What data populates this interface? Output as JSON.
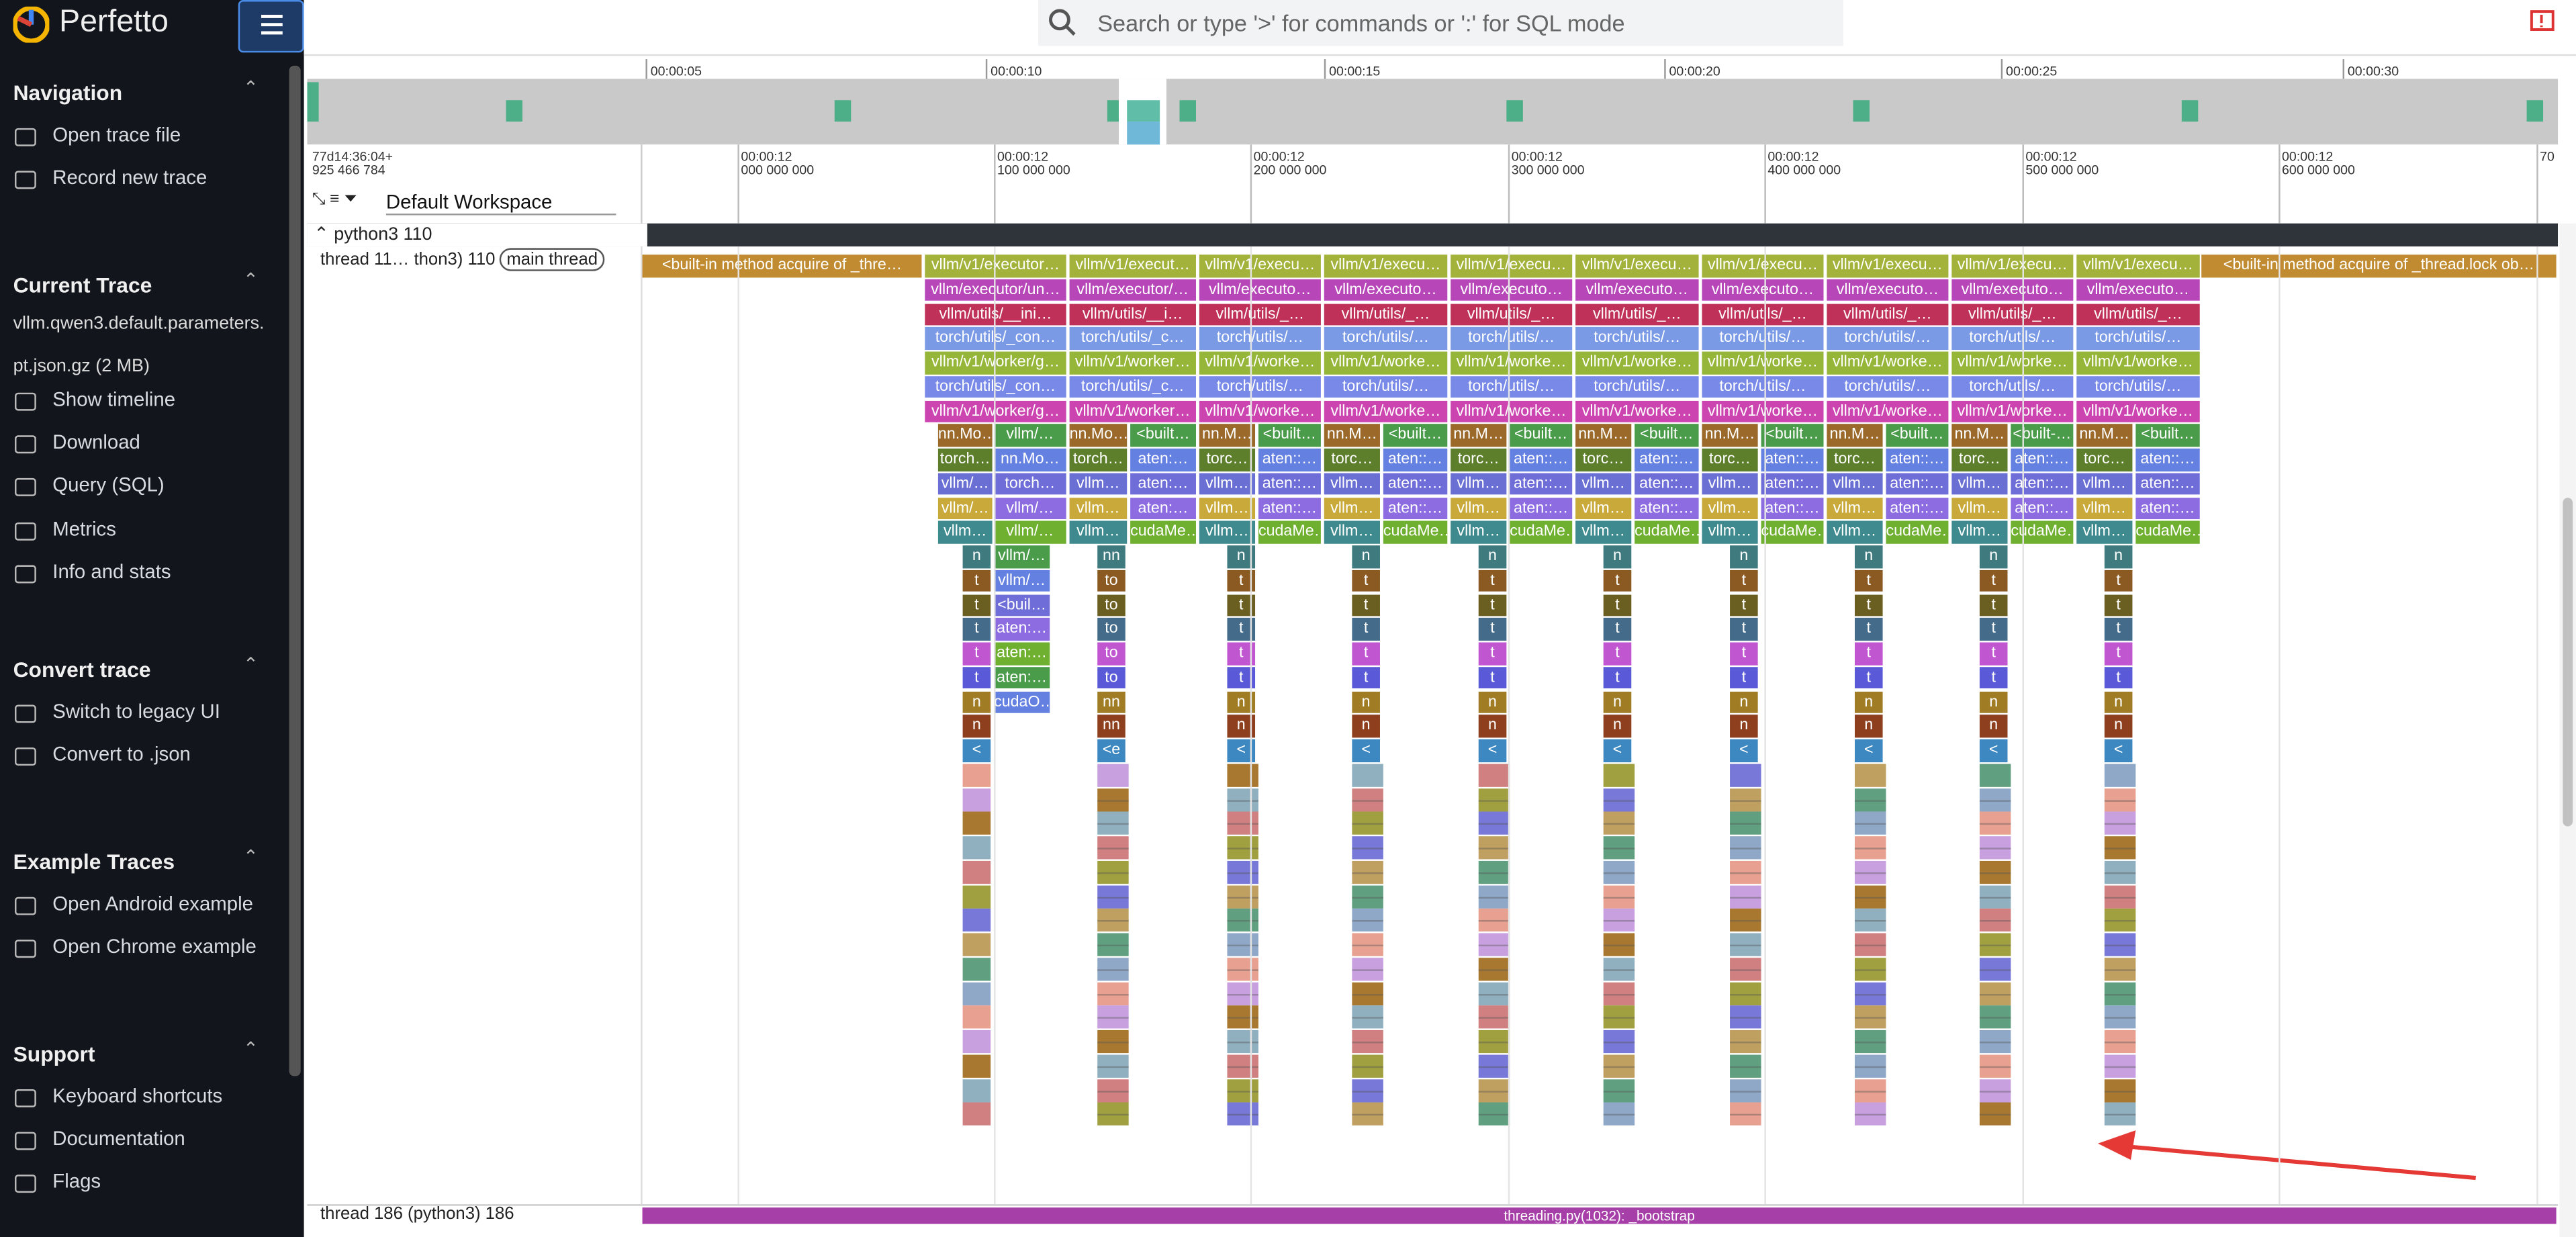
{
  "app": {
    "name": "Perfetto",
    "search_placeholder": "Search or type '>' for commands or ':' for SQL mode"
  },
  "sidebar": {
    "sections": [
      {
        "title": "Navigation",
        "items": [
          "Open trace file",
          "Record new trace"
        ]
      },
      {
        "title": "Current Trace",
        "file": "vllm.qwen3.default.parameters.pt.json.gz (2 MB)",
        "items": [
          "Show timeline",
          "Download",
          "Query (SQL)",
          "Metrics",
          "Info and stats"
        ]
      },
      {
        "title": "Convert trace",
        "items": [
          "Switch to legacy UI",
          "Convert to .json"
        ]
      },
      {
        "title": "Example Traces",
        "items": [
          "Open Android example",
          "Open Chrome example"
        ]
      },
      {
        "title": "Support",
        "items": [
          "Keyboard shortcuts",
          "Documentation",
          "Flags"
        ]
      }
    ]
  },
  "overview": {
    "ticks": [
      "00:00:05",
      "00:00:10",
      "00:00:15",
      "00:00:20",
      "00:00:25",
      "00:00:30"
    ]
  },
  "timeline": {
    "offset": [
      "77d14:36:04+",
      "925 466 784"
    ],
    "workspace": "Default Workspace",
    "ticks": [
      [
        "00:00:12",
        "000 000 000"
      ],
      [
        "00:00:12",
        "100 000 000"
      ],
      [
        "00:00:12",
        "200 000 000"
      ],
      [
        "00:00:12",
        "300 000 000"
      ],
      [
        "00:00:12",
        "400 000 000"
      ],
      [
        "00:00:12",
        "500 000 000"
      ],
      [
        "00:00:12",
        "600 000 000"
      ],
      [
        "70"
      ]
    ]
  },
  "tracks": {
    "process": "python3 110",
    "thread": "thread 11… thon3) 110",
    "thread_tag": "main thread",
    "thread2": "thread 186 (python3) 186",
    "long_slices": [
      "<built-in method acquire of _thre…",
      "<built-in method acquire of _thread.lock ob…"
    ],
    "bootstrap": "threading.py(1032): _bootstrap",
    "groups": [
      {
        "full": [
          "vllm/v1/executor…",
          "vllm/executor/un…",
          "vllm/utils/__ini…",
          "torch/utils/_con…",
          "vllm/v1/worker/g…",
          "torch/utils/_con…",
          "vllm/v1/worker/g…"
        ],
        "left": [
          "nn.Mo…",
          "torch…",
          "vllm/…",
          "vllm/…",
          "vllm…"
        ],
        "right": [
          "vllm/…",
          "nn.Mo…",
          "torch…",
          "vllm/…",
          "vllm/…"
        ],
        "narrow": [
          "n",
          "t",
          "t",
          "t",
          "t",
          "t",
          "n",
          "n",
          "<"
        ],
        "extra": [
          "vllm/…",
          "vllm/…",
          "<buil…",
          "aten:…",
          "aten:…",
          "aten:…",
          "cudaO…"
        ]
      },
      {
        "full": [
          "vllm/v1/execut…",
          "vllm/executor/…",
          "vllm/utils/__i…",
          "torch/utils/_c…",
          "vllm/v1/worker…",
          "torch/utils/_c…",
          "vllm/v1/worker…"
        ],
        "left": [
          "nn.Mo…",
          "torch…",
          "vllm…",
          "vllm…",
          "vllm…"
        ],
        "right": [
          "<built…",
          "aten:…",
          "aten:…",
          "aten:…",
          "cudaMe…"
        ],
        "narrow": [
          "nn",
          "to",
          "to",
          "to",
          "to",
          "to",
          "nn",
          "nn",
          "<e"
        ]
      },
      {
        "full": [
          "vllm/v1/execu…",
          "vllm/executo…",
          "vllm/utils/_…",
          "torch/utils/…",
          "vllm/v1/worke…",
          "torch/utils/…",
          "vllm/v1/worke…"
        ],
        "left": [
          "nn.M…",
          "torc…",
          "vllm…",
          "vllm…",
          "vllm…"
        ],
        "right": [
          "<built…",
          "aten::…",
          "aten::…",
          "aten::…",
          "cudaMe…"
        ],
        "narrow": [
          "n",
          "t",
          "t",
          "t",
          "t",
          "t",
          "n",
          "n",
          "<"
        ]
      },
      {
        "full": [
          "vllm/v1/execu…",
          "vllm/executo…",
          "vllm/utils/_…",
          "torch/utils/…",
          "vllm/v1/worke…",
          "torch/utils/…",
          "vllm/v1/worke…"
        ],
        "left": [
          "nn.M…",
          "torc…",
          "vllm…",
          "vllm…",
          "vllm…"
        ],
        "right": [
          "<built…",
          "aten::…",
          "aten::…",
          "aten::…",
          "cudaMe…"
        ],
        "narrow": [
          "n",
          "t",
          "t",
          "t",
          "t",
          "t",
          "n",
          "n",
          "<"
        ]
      },
      {
        "full": [
          "vllm/v1/execu…",
          "vllm/executo…",
          "vllm/utils/_…",
          "torch/utils/…",
          "vllm/v1/worke…",
          "torch/utils/…",
          "vllm/v1/worke…"
        ],
        "left": [
          "nn.M…",
          "torc…",
          "vllm…",
          "vllm…",
          "vllm…"
        ],
        "right": [
          "<built…",
          "aten::…",
          "aten::…",
          "aten::…",
          "cudaMe…"
        ],
        "narrow": [
          "n",
          "t",
          "t",
          "t",
          "t",
          "t",
          "n",
          "n",
          "<"
        ]
      },
      {
        "full": [
          "vllm/v1/execu…",
          "vllm/executo…",
          "vllm/utils/_…",
          "torch/utils/…",
          "vllm/v1/worke…",
          "torch/utils/…",
          "vllm/v1/worke…"
        ],
        "left": [
          "nn.M…",
          "torc…",
          "vllm…",
          "vllm…",
          "vllm…"
        ],
        "right": [
          "<built…",
          "aten::…",
          "aten::…",
          "aten::…",
          "cudaMe…"
        ],
        "narrow": [
          "n",
          "t",
          "t",
          "t",
          "t",
          "t",
          "n",
          "n",
          "<"
        ]
      },
      {
        "full": [
          "vllm/v1/execu…",
          "vllm/executo…",
          "vllm/utils/_…",
          "torch/utils/…",
          "vllm/v1/worke…",
          "torch/utils/…",
          "vllm/v1/worke…"
        ],
        "left": [
          "nn.M…",
          "torc…",
          "vllm…",
          "vllm…",
          "vllm…"
        ],
        "right": [
          "<built…",
          "aten::…",
          "aten::…",
          "aten::…",
          "cudaMe…"
        ],
        "narrow": [
          "n",
          "t",
          "t",
          "t",
          "t",
          "t",
          "n",
          "n",
          "<"
        ]
      },
      {
        "full": [
          "vllm/v1/execu…",
          "vllm/executo…",
          "vllm/utils/_…",
          "torch/utils/…",
          "vllm/v1/worke…",
          "torch/utils/…",
          "vllm/v1/worke…"
        ],
        "left": [
          "nn.M…",
          "torc…",
          "vllm…",
          "vllm…",
          "vllm…"
        ],
        "right": [
          "<built…",
          "aten::…",
          "aten::…",
          "aten::…",
          "cudaMe…"
        ],
        "narrow": [
          "n",
          "t",
          "t",
          "t",
          "t",
          "t",
          "n",
          "n",
          "<"
        ]
      },
      {
        "full": [
          "vllm/v1/execu…",
          "vllm/executo…",
          "vllm/utils/_…",
          "torch/utils/…",
          "vllm/v1/worke…",
          "torch/utils/…",
          "vllm/v1/worke…"
        ],
        "left": [
          "nn.M…",
          "torc…",
          "vllm…",
          "vllm…",
          "vllm…"
        ],
        "right": [
          "<built-…",
          "aten::…",
          "aten::…",
          "aten::…",
          "cudaMe…"
        ],
        "narrow": [
          "n",
          "t",
          "t",
          "t",
          "t",
          "t",
          "n",
          "n",
          "<"
        ]
      },
      {
        "full": [
          "vllm/v1/execu…",
          "vllm/executo…",
          "vllm/utils/_…",
          "torch/utils/…",
          "vllm/v1/worke…",
          "torch/utils/…",
          "vllm/v1/worke…"
        ],
        "left": [
          "nn.M…",
          "torc…",
          "vllm…",
          "vllm…",
          "vllm…"
        ],
        "right": [
          "<built…",
          "aten::…",
          "aten::…",
          "aten::…",
          "cudaMe…"
        ],
        "narrow": [
          "n",
          "t",
          "t",
          "t",
          "t",
          "t",
          "n",
          "n",
          "<"
        ]
      }
    ]
  }
}
